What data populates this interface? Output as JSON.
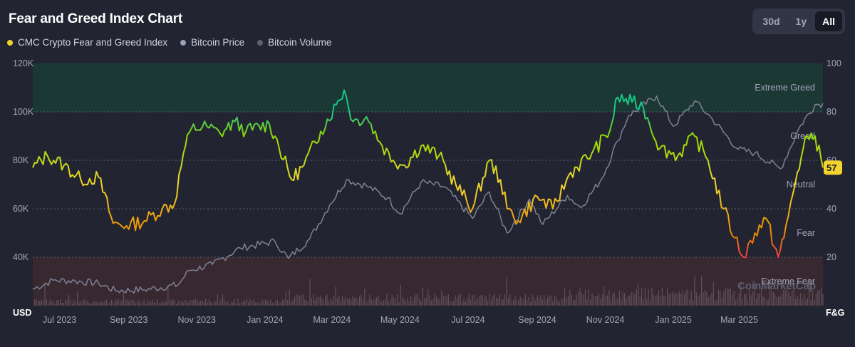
{
  "header": {
    "title": "Fear and Greed Index Chart"
  },
  "range": {
    "options": [
      "30d",
      "1y",
      "All"
    ],
    "selected": "All"
  },
  "legend": [
    {
      "label": "CMC Crypto Fear and Greed Index",
      "color": "#f3d42f"
    },
    {
      "label": "Bitcoin Price",
      "color": "#9aa0b6"
    },
    {
      "label": "Bitcoin Volume",
      "color": "#5b6072"
    }
  ],
  "chart_data": {
    "type": "line",
    "left_axis": {
      "unit": "USD",
      "ticks": [
        "120K",
        "100K",
        "80K",
        "60K",
        "40K"
      ],
      "tick_values": [
        120000,
        100000,
        80000,
        60000,
        40000
      ],
      "range": [
        20000,
        120000
      ]
    },
    "right_axis": {
      "unit": "F&G",
      "ticks": [
        "100",
        "80",
        "60",
        "40",
        "20"
      ],
      "tick_values": [
        100,
        80,
        60,
        40,
        20
      ],
      "range": [
        0,
        100
      ]
    },
    "x_ticks": [
      "Jul 2023",
      "Sep 2023",
      "Nov 2023",
      "Jan 2024",
      "Mar 2024",
      "May 2024",
      "Jul 2024",
      "Sep 2024",
      "Nov 2024",
      "Jan 2025",
      "Mar 2025"
    ],
    "x_range": [
      "2023-06-07",
      "2025-05-15"
    ],
    "zones": [
      {
        "label": "Extreme Greed",
        "range": [
          80,
          100
        ],
        "color": "#1e3b38"
      },
      {
        "label": "Greed",
        "range": [
          60,
          80
        ]
      },
      {
        "label": "Neutral",
        "range": [
          40,
          60
        ]
      },
      {
        "label": "Fear",
        "range": [
          20,
          40
        ]
      },
      {
        "label": "Extreme Fear",
        "range": [
          0,
          20
        ],
        "color": "#3a2830"
      }
    ],
    "current_value": "57",
    "watermark": "CoinMarketCap",
    "series": [
      {
        "name": "CMC Crypto Fear and Greed Index",
        "axis": "right",
        "points": [
          [
            "2023-06-07",
            57
          ],
          [
            "2023-06-20",
            62
          ],
          [
            "2023-07-05",
            58
          ],
          [
            "2023-07-20",
            52
          ],
          [
            "2023-08-05",
            53
          ],
          [
            "2023-08-18",
            34
          ],
          [
            "2023-08-30",
            33
          ],
          [
            "2023-09-15",
            35
          ],
          [
            "2023-10-01",
            40
          ],
          [
            "2023-10-12",
            42
          ],
          [
            "2023-10-20",
            63
          ],
          [
            "2023-10-27",
            73
          ],
          [
            "2023-11-10",
            74
          ],
          [
            "2023-11-22",
            71
          ],
          [
            "2023-12-05",
            76
          ],
          [
            "2023-12-15",
            72
          ],
          [
            "2024-01-05",
            75
          ],
          [
            "2024-01-10",
            70
          ],
          [
            "2024-01-25",
            52
          ],
          [
            "2024-02-05",
            58
          ],
          [
            "2024-02-20",
            72
          ],
          [
            "2024-03-05",
            83
          ],
          [
            "2024-03-12",
            89
          ],
          [
            "2024-03-20",
            76
          ],
          [
            "2024-04-01",
            78
          ],
          [
            "2024-04-15",
            66
          ],
          [
            "2024-04-25",
            60
          ],
          [
            "2024-05-05",
            58
          ],
          [
            "2024-05-20",
            66
          ],
          [
            "2024-06-05",
            62
          ],
          [
            "2024-06-20",
            50
          ],
          [
            "2024-07-05",
            40
          ],
          [
            "2024-07-20",
            60
          ],
          [
            "2024-07-30",
            52
          ],
          [
            "2024-08-05",
            40
          ],
          [
            "2024-08-15",
            35
          ],
          [
            "2024-09-01",
            45
          ],
          [
            "2024-09-15",
            40
          ],
          [
            "2024-10-01",
            55
          ],
          [
            "2024-10-20",
            63
          ],
          [
            "2024-11-05",
            72
          ],
          [
            "2024-11-12",
            86
          ],
          [
            "2024-11-25",
            84
          ],
          [
            "2024-12-05",
            82
          ],
          [
            "2024-12-20",
            65
          ],
          [
            "2025-01-05",
            62
          ],
          [
            "2025-01-20",
            70
          ],
          [
            "2025-02-01",
            60
          ],
          [
            "2025-02-15",
            40
          ],
          [
            "2025-02-25",
            28
          ],
          [
            "2025-03-05",
            20
          ],
          [
            "2025-03-15",
            30
          ],
          [
            "2025-03-25",
            36
          ],
          [
            "2025-04-05",
            20
          ],
          [
            "2025-04-10",
            28
          ],
          [
            "2025-04-22",
            55
          ],
          [
            "2025-05-01",
            70
          ],
          [
            "2025-05-08",
            70
          ],
          [
            "2025-05-15",
            57
          ]
        ]
      },
      {
        "name": "Bitcoin Price",
        "axis": "left",
        "points": [
          [
            "2023-06-07",
            26800
          ],
          [
            "2023-06-25",
            30500
          ],
          [
            "2023-07-15",
            30200
          ],
          [
            "2023-08-05",
            29200
          ],
          [
            "2023-08-20",
            26200
          ],
          [
            "2023-09-15",
            26600
          ],
          [
            "2023-10-15",
            28500
          ],
          [
            "2023-10-25",
            34500
          ],
          [
            "2023-11-15",
            37000
          ],
          [
            "2023-12-10",
            43800
          ],
          [
            "2024-01-10",
            46500
          ],
          [
            "2024-01-22",
            39500
          ],
          [
            "2024-02-10",
            47500
          ],
          [
            "2024-02-28",
            61500
          ],
          [
            "2024-03-14",
            72000
          ],
          [
            "2024-04-01",
            69500
          ],
          [
            "2024-04-20",
            64500
          ],
          [
            "2024-05-01",
            58000
          ],
          [
            "2024-05-20",
            71000
          ],
          [
            "2024-06-10",
            69000
          ],
          [
            "2024-07-05",
            56000
          ],
          [
            "2024-07-20",
            67000
          ],
          [
            "2024-08-05",
            50000
          ],
          [
            "2024-08-25",
            64000
          ],
          [
            "2024-09-06",
            53500
          ],
          [
            "2024-09-28",
            65500
          ],
          [
            "2024-10-10",
            60500
          ],
          [
            "2024-10-29",
            72500
          ],
          [
            "2024-11-12",
            88000
          ],
          [
            "2024-11-22",
            98500
          ],
          [
            "2024-12-17",
            106500
          ],
          [
            "2025-01-01",
            94000
          ],
          [
            "2025-01-20",
            104500
          ],
          [
            "2025-02-05",
            97000
          ],
          [
            "2025-02-28",
            84500
          ],
          [
            "2025-03-15",
            83000
          ],
          [
            "2025-04-07",
            76500
          ],
          [
            "2025-04-25",
            94500
          ],
          [
            "2025-05-08",
            103000
          ],
          [
            "2025-05-15",
            103500
          ]
        ]
      }
    ]
  }
}
